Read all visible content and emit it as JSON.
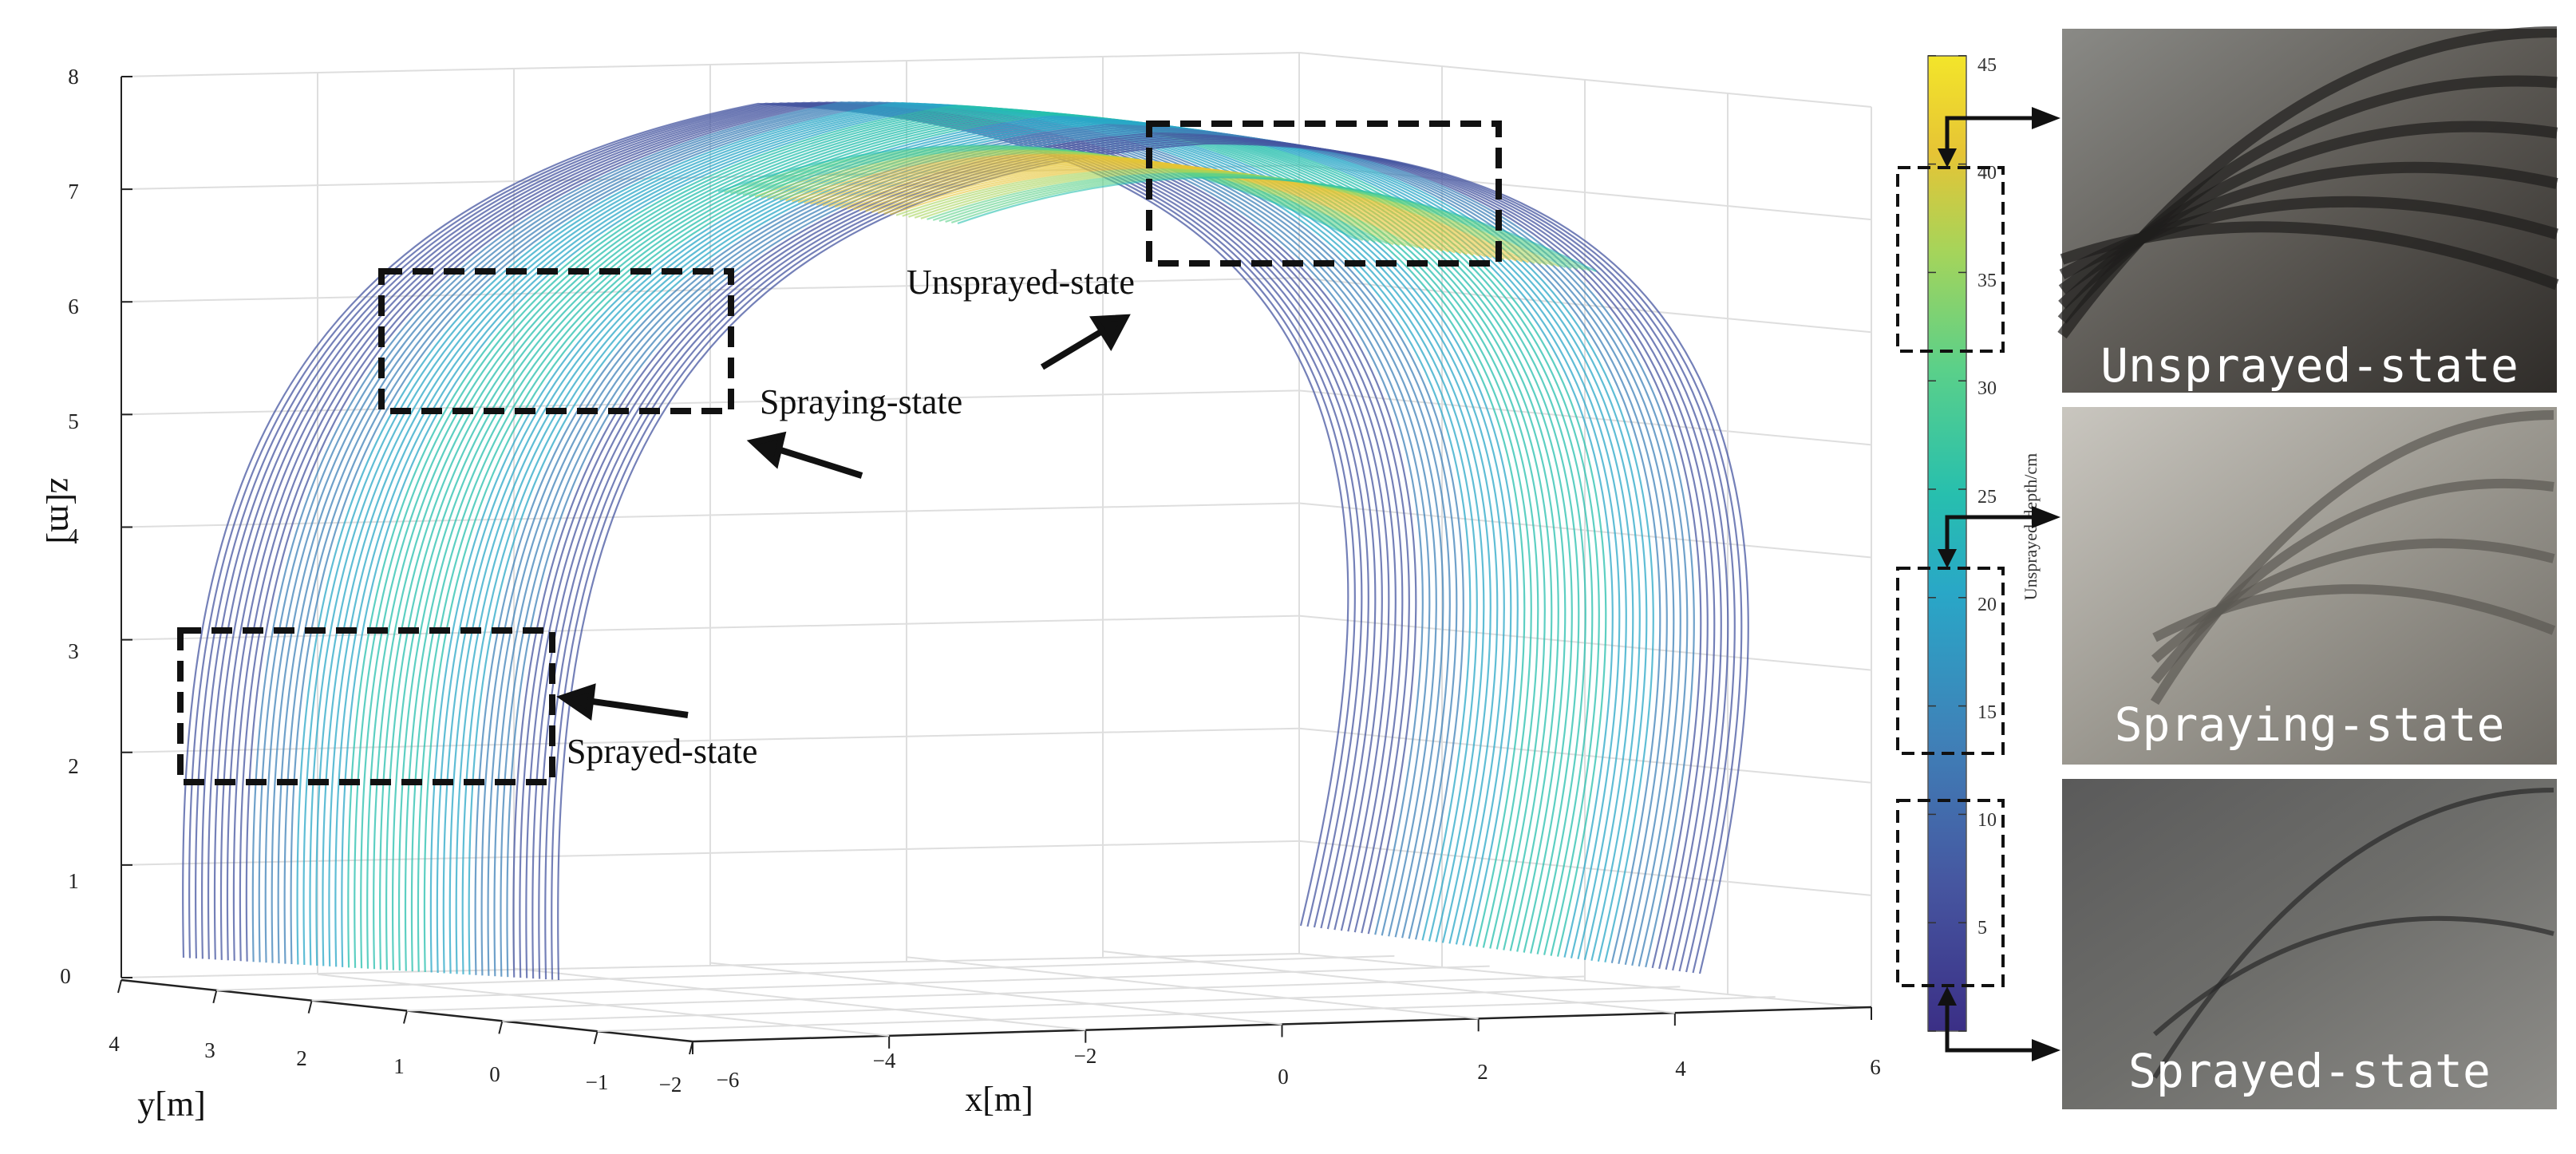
{
  "chart_data": {
    "type": "scatter",
    "title": "",
    "xlabel": "x[m]",
    "ylabel": "y[m]",
    "zlabel": "z[m]",
    "xlim": [
      -6,
      6
    ],
    "ylim": [
      -2,
      4
    ],
    "zlim": [
      0,
      8
    ],
    "x_ticks": [
      "−6",
      "−4",
      "−2",
      "0",
      "2",
      "4",
      "6"
    ],
    "y_ticks": [
      "4",
      "3",
      "2",
      "1",
      "0",
      "−1",
      "−2"
    ],
    "z_ticks": [
      "0",
      "1",
      "2",
      "3",
      "4",
      "5",
      "6",
      "7",
      "8"
    ],
    "grid": true,
    "colorbar": {
      "label": "Unsprayed-depth/cm",
      "range": [
        0,
        45
      ],
      "ticks": [
        "5",
        "10",
        "15",
        "20",
        "25",
        "30",
        "35",
        "40",
        "45"
      ],
      "colormap": [
        "#3b2f86",
        "#4656a0",
        "#3f81b8",
        "#29a7c7",
        "#27bfae",
        "#5bd089",
        "#a6d45a",
        "#e6c435",
        "#f3e52a"
      ]
    },
    "annotations": [
      "Unsprayed-state",
      "Spraying-state",
      "Sprayed-state"
    ]
  },
  "photos": [
    {
      "caption": "Unsprayed-state"
    },
    {
      "caption": "Spraying-state"
    },
    {
      "caption": "Sprayed-state"
    }
  ]
}
